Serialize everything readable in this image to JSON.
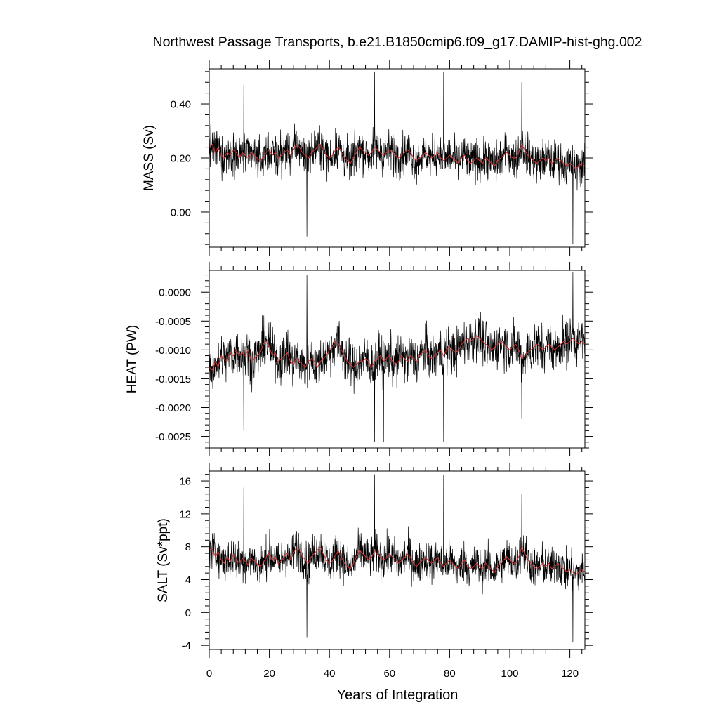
{
  "chart_data": {
    "type": "line",
    "title": "Northwest Passage Transports, b.e21.B1850cmip6.f09_g17.DAMIP-hist-ghg.002",
    "xlabel": "Years of Integration",
    "xlim": [
      0,
      125
    ],
    "xticks": [
      0,
      20,
      40,
      60,
      80,
      100,
      120
    ],
    "grid": false,
    "smooth_color": "#e03030",
    "raw_color": "#000000",
    "panels": [
      {
        "id": "mass",
        "ylabel": "MASS (Sv)",
        "ylim": [
          -0.13,
          0.53
        ],
        "yticks": [
          0.0,
          0.2,
          0.4
        ],
        "ytick_labels": [
          "0.00",
          "0.20",
          "0.40"
        ],
        "series": [
          {
            "x": [
              0,
              1,
              2,
              3,
              4,
              5,
              6,
              7,
              8,
              9,
              10,
              11,
              12,
              13,
              14,
              15,
              16,
              17,
              18,
              19,
              20,
              21,
              22,
              23,
              24,
              25,
              26,
              27,
              28,
              29,
              30,
              31,
              32,
              33,
              34,
              35,
              36,
              37,
              38,
              39,
              40,
              41,
              42,
              43,
              44,
              45,
              46,
              47,
              48,
              49,
              50,
              51,
              52,
              53,
              54,
              55,
              56,
              57,
              58,
              59,
              60,
              61,
              62,
              63,
              64,
              65,
              66,
              67,
              68,
              69,
              70,
              71,
              72,
              73,
              74,
              75,
              76,
              77,
              78,
              79,
              80,
              81,
              82,
              83,
              84,
              85,
              86,
              87,
              88,
              89,
              90,
              91,
              92,
              93,
              94,
              95,
              96,
              97,
              98,
              99,
              100,
              101,
              102,
              103,
              104,
              105,
              106,
              107,
              108,
              109,
              110,
              111,
              112,
              113,
              114,
              115,
              116,
              117,
              118,
              119,
              120,
              121,
              122,
              123,
              124,
              125
            ],
            "values": [
              0.24,
              0.25,
              0.22,
              0.24,
              0.21,
              0.2,
              0.22,
              0.21,
              0.23,
              0.22,
              0.2,
              0.22,
              0.21,
              0.2,
              0.22,
              0.21,
              0.2,
              0.19,
              0.2,
              0.22,
              0.23,
              0.21,
              0.22,
              0.2,
              0.21,
              0.22,
              0.23,
              0.21,
              0.23,
              0.25,
              0.24,
              0.22,
              0.21,
              0.2,
              0.22,
              0.23,
              0.24,
              0.25,
              0.23,
              0.21,
              0.2,
              0.21,
              0.23,
              0.24,
              0.22,
              0.2,
              0.19,
              0.18,
              0.2,
              0.22,
              0.24,
              0.23,
              0.22,
              0.21,
              0.22,
              0.24,
              0.23,
              0.22,
              0.21,
              0.22,
              0.23,
              0.22,
              0.21,
              0.2,
              0.21,
              0.22,
              0.23,
              0.22,
              0.2,
              0.19,
              0.2,
              0.21,
              0.22,
              0.21,
              0.2,
              0.21,
              0.22,
              0.2,
              0.19,
              0.2,
              0.21,
              0.2,
              0.19,
              0.18,
              0.2,
              0.21,
              0.19,
              0.18,
              0.19,
              0.2,
              0.19,
              0.18,
              0.2,
              0.19,
              0.18,
              0.17,
              0.19,
              0.2,
              0.21,
              0.22,
              0.21,
              0.2,
              0.2,
              0.22,
              0.25,
              0.23,
              0.21,
              0.2,
              0.19,
              0.18,
              0.19,
              0.2,
              0.19,
              0.2,
              0.18,
              0.19,
              0.2,
              0.19,
              0.18,
              0.17,
              0.18,
              0.17,
              0.16,
              0.17,
              0.18,
              0.17
            ],
            "noise_amplitude": 0.13,
            "spikes": [
              [
                55,
                0.52
              ],
              [
                78,
                0.52
              ],
              [
                121,
                -0.12
              ],
              [
                32.5,
                -0.09
              ],
              [
                11.5,
                0.47
              ],
              [
                104,
                0.48
              ]
            ]
          }
        ]
      },
      {
        "id": "heat",
        "ylabel": "HEAT (PW)",
        "ylim": [
          -0.0027,
          0.00038
        ],
        "yticks": [
          0.0,
          -0.0005,
          -0.001,
          -0.0015,
          -0.002,
          -0.0025
        ],
        "ytick_labels": [
          "0.0000",
          "-0.0005",
          "-0.0010",
          "-0.0015",
          "-0.0020",
          "-0.0025"
        ],
        "series": [
          {
            "x": [
              0,
              1,
              2,
              3,
              4,
              5,
              6,
              7,
              8,
              9,
              10,
              11,
              12,
              13,
              14,
              15,
              16,
              17,
              18,
              19,
              20,
              21,
              22,
              23,
              24,
              25,
              26,
              27,
              28,
              29,
              30,
              31,
              32,
              33,
              34,
              35,
              36,
              37,
              38,
              39,
              40,
              41,
              42,
              43,
              44,
              45,
              46,
              47,
              48,
              49,
              50,
              51,
              52,
              53,
              54,
              55,
              56,
              57,
              58,
              59,
              60,
              61,
              62,
              63,
              64,
              65,
              66,
              67,
              68,
              69,
              70,
              71,
              72,
              73,
              74,
              75,
              76,
              77,
              78,
              79,
              80,
              81,
              82,
              83,
              84,
              85,
              86,
              87,
              88,
              89,
              90,
              91,
              92,
              93,
              94,
              95,
              96,
              97,
              98,
              99,
              100,
              101,
              102,
              103,
              104,
              105,
              106,
              107,
              108,
              109,
              110,
              111,
              112,
              113,
              114,
              115,
              116,
              117,
              118,
              119,
              120,
              121,
              122,
              123,
              124,
              125
            ],
            "values": [
              -0.0013,
              -0.00135,
              -0.0012,
              -0.0013,
              -0.0011,
              -0.00115,
              -0.0012,
              -0.00105,
              -0.0011,
              -0.001,
              -0.0011,
              -0.00105,
              -0.0011,
              -0.001,
              -0.0012,
              -0.00115,
              -0.0011,
              -0.00105,
              -0.0009,
              -0.00085,
              -0.00095,
              -0.0011,
              -0.00105,
              -0.0012,
              -0.00115,
              -0.0011,
              -0.00105,
              -0.0012,
              -0.00125,
              -0.00115,
              -0.0012,
              -0.00125,
              -0.0013,
              -0.0012,
              -0.00115,
              -0.0012,
              -0.0013,
              -0.0012,
              -0.00115,
              -0.0011,
              -0.001,
              -0.00095,
              -0.00085,
              -0.0009,
              -0.001,
              -0.0011,
              -0.0012,
              -0.00125,
              -0.0013,
              -0.00125,
              -0.0012,
              -0.0012,
              -0.00115,
              -0.0012,
              -0.0013,
              -0.0012,
              -0.00115,
              -0.0011,
              -0.0012,
              -0.00115,
              -0.0011,
              -0.0012,
              -0.00125,
              -0.0012,
              -0.0011,
              -0.00115,
              -0.0012,
              -0.0011,
              -0.00115,
              -0.0012,
              -0.0011,
              -0.00105,
              -0.001,
              -0.0011,
              -0.00115,
              -0.0011,
              -0.00105,
              -0.001,
              -0.0011,
              -0.001,
              -0.00095,
              -0.001,
              -0.00105,
              -0.001,
              -0.0009,
              -0.00085,
              -0.0008,
              -0.00085,
              -0.0008,
              -0.00075,
              -0.0008,
              -0.00085,
              -0.0009,
              -0.00095,
              -0.001,
              -0.00095,
              -0.0009,
              -0.00085,
              -0.0009,
              -0.00095,
              -0.001,
              -0.00095,
              -0.0009,
              -0.001,
              -0.00115,
              -0.0011,
              -0.00105,
              -0.001,
              -0.00095,
              -0.0009,
              -0.00095,
              -0.001,
              -0.00095,
              -0.0009,
              -0.00095,
              -0.001,
              -0.00095,
              -0.0009,
              -0.00085,
              -0.0009,
              -0.00085,
              -0.0008,
              -0.00085,
              -0.0009,
              -0.00085,
              -0.0009
            ],
            "noise_amplitude": 0.0007,
            "spikes": [
              [
                32.5,
                0.0003
              ],
              [
                55,
                -0.0026
              ],
              [
                58,
                -0.0026
              ],
              [
                78,
                -0.0026
              ],
              [
                121,
                0.00035
              ],
              [
                104,
                -0.0022
              ],
              [
                11.5,
                -0.0024
              ]
            ]
          }
        ]
      },
      {
        "id": "salt",
        "ylabel": "SALT (Sv*ppt)",
        "ylim": [
          -4.5,
          17.2
        ],
        "yticks": [
          -4,
          0,
          4,
          8,
          12,
          16
        ],
        "ytick_labels": [
          "-4",
          "0",
          "4",
          "8",
          "12",
          "16"
        ],
        "series": [
          {
            "x": [
              0,
              1,
              2,
              3,
              4,
              5,
              6,
              7,
              8,
              9,
              10,
              11,
              12,
              13,
              14,
              15,
              16,
              17,
              18,
              19,
              20,
              21,
              22,
              23,
              24,
              25,
              26,
              27,
              28,
              29,
              30,
              31,
              32,
              33,
              34,
              35,
              36,
              37,
              38,
              39,
              40,
              41,
              42,
              43,
              44,
              45,
              46,
              47,
              48,
              49,
              50,
              51,
              52,
              53,
              54,
              55,
              56,
              57,
              58,
              59,
              60,
              61,
              62,
              63,
              64,
              65,
              66,
              67,
              68,
              69,
              70,
              71,
              72,
              73,
              74,
              75,
              76,
              77,
              78,
              79,
              80,
              81,
              82,
              83,
              84,
              85,
              86,
              87,
              88,
              89,
              90,
              91,
              92,
              93,
              94,
              95,
              96,
              97,
              98,
              99,
              100,
              101,
              102,
              103,
              104,
              105,
              106,
              107,
              108,
              109,
              110,
              111,
              112,
              113,
              114,
              115,
              116,
              117,
              118,
              119,
              120,
              121,
              122,
              123,
              124,
              125
            ],
            "values": [
              7.5,
              7.8,
              6.8,
              7.4,
              6.4,
              6.0,
              6.8,
              6.2,
              7.0,
              6.5,
              6.0,
              6.6,
              6.2,
              5.8,
              6.6,
              6.3,
              5.9,
              5.6,
              6.0,
              6.8,
              7.2,
              6.3,
              6.8,
              5.9,
              6.3,
              6.8,
              7.2,
              6.4,
              7.2,
              7.9,
              7.6,
              6.8,
              6.4,
              6.0,
              6.8,
              7.2,
              7.6,
              7.9,
              7.1,
              6.4,
              6.0,
              6.3,
              7.0,
              7.5,
              6.7,
              6.0,
              5.6,
              5.3,
              6.0,
              6.8,
              7.6,
              7.2,
              6.8,
              6.4,
              6.7,
              7.5,
              7.1,
              6.7,
              6.4,
              6.7,
              7.1,
              6.8,
              6.4,
              6.0,
              6.3,
              6.7,
              7.1,
              6.7,
              6.0,
              5.6,
              6.0,
              6.4,
              6.7,
              6.3,
              6.0,
              6.3,
              6.7,
              6.0,
              5.6,
              6.0,
              6.4,
              6.0,
              5.6,
              5.3,
              6.0,
              6.4,
              5.6,
              5.3,
              5.6,
              6.0,
              5.6,
              5.3,
              6.0,
              5.6,
              5.2,
              4.9,
              5.6,
              6.0,
              6.4,
              6.8,
              6.4,
              6.0,
              6.0,
              6.8,
              7.9,
              7.2,
              6.4,
              6.0,
              5.6,
              5.3,
              5.6,
              6.0,
              5.6,
              6.0,
              5.3,
              5.6,
              6.0,
              5.6,
              5.3,
              4.9,
              5.3,
              4.9,
              4.6,
              4.9,
              5.3,
              4.9
            ],
            "noise_amplitude": 4.3,
            "spikes": [
              [
                55,
                16.8
              ],
              [
                78,
                16.7
              ],
              [
                121,
                -3.6
              ],
              [
                32.5,
                -3.0
              ],
              [
                11.5,
                15.2
              ],
              [
                104,
                14.4
              ]
            ]
          }
        ]
      }
    ]
  }
}
